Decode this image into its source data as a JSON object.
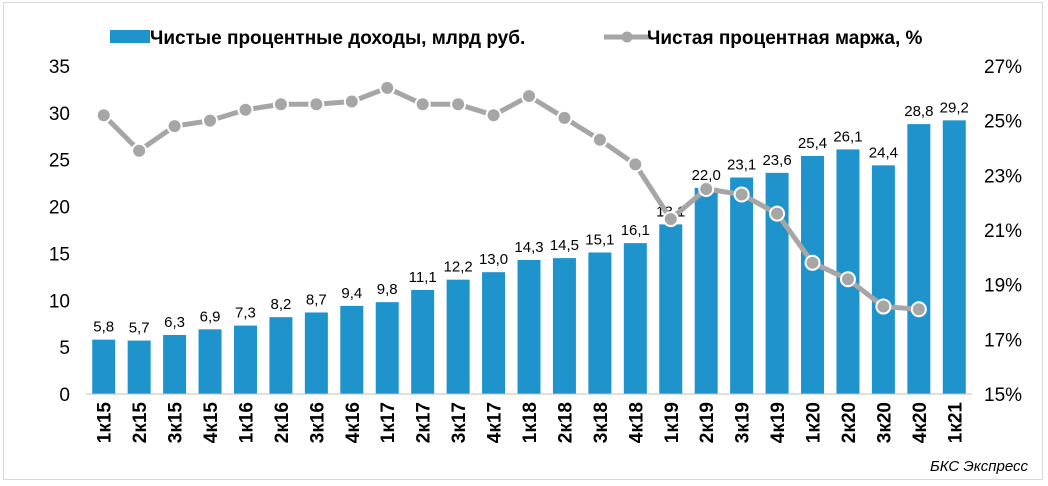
{
  "chart_data": {
    "type": "bar",
    "categories": [
      "1к15",
      "2к15",
      "3к15",
      "4к15",
      "1к16",
      "2к16",
      "3к16",
      "4к16",
      "1к17",
      "2к17",
      "3к17",
      "4к17",
      "1к18",
      "2к18",
      "3к18",
      "4к18",
      "1к19",
      "2к19",
      "3к19",
      "4к19",
      "1к20",
      "2к20",
      "3к20",
      "4к20",
      "1к21"
    ],
    "series": [
      {
        "name": "Чистые процентные доходы, млрд руб.",
        "type": "bar",
        "axis": "left",
        "color": "#1f94cc",
        "values": [
          5.8,
          5.7,
          6.3,
          6.9,
          7.3,
          8.2,
          8.7,
          9.4,
          9.8,
          11.1,
          12.2,
          13.0,
          14.3,
          14.5,
          15.1,
          16.1,
          18.1,
          22.0,
          23.1,
          23.6,
          25.4,
          26.1,
          24.4,
          28.8,
          29.2
        ],
        "labels": [
          "5,8",
          "5,7",
          "6,3",
          "6,9",
          "7,3",
          "8,2",
          "8,7",
          "9,4",
          "9,8",
          "11,1",
          "12,2",
          "13,0",
          "14,3",
          "14,5",
          "15,1",
          "16,1",
          "18,1",
          "22,0",
          "23,1",
          "23,6",
          "25,4",
          "26,1",
          "24,4",
          "28,8",
          "29,2"
        ]
      },
      {
        "name": "Чистая процентная маржа, %",
        "type": "line",
        "axis": "right",
        "color": "#a6a6a6",
        "values": [
          25.2,
          23.9,
          24.8,
          25.0,
          25.4,
          25.6,
          25.6,
          25.7,
          26.2,
          25.6,
          25.6,
          25.2,
          25.9,
          25.1,
          24.3,
          23.4,
          21.4,
          22.5,
          22.3,
          21.6,
          19.8,
          19.2,
          18.2,
          18.1,
          null
        ]
      }
    ],
    "y_left": {
      "ylim": [
        0,
        35
      ],
      "ticks": [
        "0",
        "5",
        "10",
        "15",
        "20",
        "25",
        "30",
        "35"
      ]
    },
    "y_right": {
      "ylim": [
        15,
        27
      ],
      "ticks": [
        "15%",
        "17%",
        "19%",
        "21%",
        "23%",
        "25%",
        "27%"
      ]
    },
    "legend_position": "top",
    "grid": false
  },
  "source": "БКС Экспресс"
}
